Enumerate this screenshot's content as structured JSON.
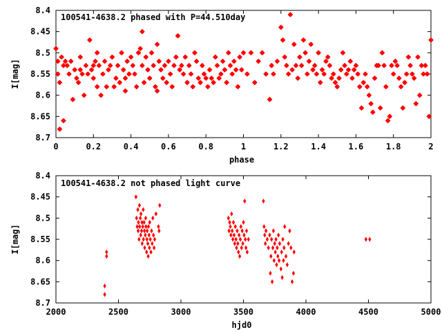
{
  "chart_data": [
    {
      "type": "scatter",
      "title": "100541-4638.2 phased with P=44.510day",
      "xlabel": "phase",
      "ylabel": "I[mag]",
      "xlim": [
        0,
        2
      ],
      "ylim": [
        8.7,
        8.4
      ],
      "y_inverted": true,
      "xticks": [
        "0",
        "0.2",
        "0.4",
        "0.6",
        "0.8",
        "1",
        "1.2",
        "1.4",
        "1.6",
        "1.8",
        "2"
      ],
      "yticks": [
        "8.4",
        "8.45",
        "8.5",
        "8.55",
        "8.6",
        "8.65",
        "8.7"
      ],
      "marker": "star",
      "color": "#ff0000",
      "points": [
        [
          0.0,
          8.49
        ],
        [
          0.01,
          8.52
        ],
        [
          0.01,
          8.55
        ],
        [
          0.02,
          8.57
        ],
        [
          0.02,
          8.68
        ],
        [
          0.03,
          8.51
        ],
        [
          0.04,
          8.53
        ],
        [
          0.04,
          8.66
        ],
        [
          0.05,
          8.52
        ],
        [
          0.06,
          8.53
        ],
        [
          0.07,
          8.55
        ],
        [
          0.08,
          8.52
        ],
        [
          0.09,
          8.61
        ],
        [
          0.1,
          8.54
        ],
        [
          0.11,
          8.56
        ],
        [
          0.12,
          8.57
        ],
        [
          0.13,
          8.51
        ],
        [
          0.13,
          8.54
        ],
        [
          0.14,
          8.55
        ],
        [
          0.15,
          8.6
        ],
        [
          0.16,
          8.53
        ],
        [
          0.17,
          8.55
        ],
        [
          0.18,
          8.47
        ],
        [
          0.19,
          8.54
        ],
        [
          0.2,
          8.53
        ],
        [
          0.2,
          8.56
        ],
        [
          0.21,
          8.52
        ],
        [
          0.22,
          8.5
        ],
        [
          0.22,
          8.58
        ],
        [
          0.23,
          8.53
        ],
        [
          0.24,
          8.6
        ],
        [
          0.25,
          8.55
        ],
        [
          0.26,
          8.52
        ],
        [
          0.27,
          8.58
        ],
        [
          0.28,
          8.54
        ],
        [
          0.29,
          8.53
        ],
        [
          0.3,
          8.51
        ],
        [
          0.31,
          8.58
        ],
        [
          0.32,
          8.56
        ],
        [
          0.33,
          8.53
        ],
        [
          0.34,
          8.57
        ],
        [
          0.35,
          8.5
        ],
        [
          0.36,
          8.54
        ],
        [
          0.37,
          8.56
        ],
        [
          0.37,
          8.59
        ],
        [
          0.38,
          8.52
        ],
        [
          0.39,
          8.55
        ],
        [
          0.4,
          8.51
        ],
        [
          0.41,
          8.53
        ],
        [
          0.42,
          8.55
        ],
        [
          0.43,
          8.58
        ],
        [
          0.44,
          8.5
        ],
        [
          0.45,
          8.49
        ],
        [
          0.46,
          8.45
        ],
        [
          0.46,
          8.53
        ],
        [
          0.47,
          8.57
        ],
        [
          0.48,
          8.51
        ],
        [
          0.49,
          8.54
        ],
        [
          0.5,
          8.56
        ],
        [
          0.51,
          8.5
        ],
        [
          0.52,
          8.53
        ],
        [
          0.53,
          8.58
        ],
        [
          0.54,
          8.48
        ],
        [
          0.54,
          8.59
        ],
        [
          0.55,
          8.52
        ],
        [
          0.56,
          8.54
        ],
        [
          0.57,
          8.56
        ],
        [
          0.58,
          8.53
        ],
        [
          0.59,
          8.57
        ],
        [
          0.6,
          8.52
        ],
        [
          0.61,
          8.55
        ],
        [
          0.62,
          8.58
        ],
        [
          0.63,
          8.53
        ],
        [
          0.64,
          8.51
        ],
        [
          0.65,
          8.46
        ],
        [
          0.66,
          8.54
        ],
        [
          0.67,
          8.53
        ],
        [
          0.68,
          8.55
        ],
        [
          0.69,
          8.51
        ],
        [
          0.7,
          8.57
        ],
        [
          0.71,
          8.53
        ],
        [
          0.72,
          8.55
        ],
        [
          0.73,
          8.58
        ],
        [
          0.74,
          8.5
        ],
        [
          0.75,
          8.52
        ],
        [
          0.76,
          8.56
        ],
        [
          0.77,
          8.57
        ],
        [
          0.78,
          8.53
        ],
        [
          0.79,
          8.55
        ],
        [
          0.8,
          8.56
        ],
        [
          0.81,
          8.58
        ],
        [
          0.82,
          8.54
        ],
        [
          0.83,
          8.56
        ],
        [
          0.84,
          8.57
        ],
        [
          0.85,
          8.51
        ],
        [
          0.86,
          8.53
        ],
        [
          0.87,
          8.56
        ],
        [
          0.88,
          8.55
        ],
        [
          0.89,
          8.52
        ],
        [
          0.9,
          8.54
        ],
        [
          0.91,
          8.57
        ],
        [
          0.92,
          8.5
        ],
        [
          0.93,
          8.53
        ],
        [
          0.94,
          8.55
        ],
        [
          0.95,
          8.52
        ],
        [
          0.96,
          8.54
        ],
        [
          0.97,
          8.58
        ],
        [
          0.98,
          8.51
        ],
        [
          0.99,
          8.54
        ],
        [
          1.0,
          8.5
        ],
        [
          1.02,
          8.55
        ],
        [
          1.04,
          8.5
        ],
        [
          1.06,
          8.57
        ],
        [
          1.08,
          8.52
        ],
        [
          1.1,
          8.5
        ],
        [
          1.12,
          8.55
        ],
        [
          1.14,
          8.61
        ],
        [
          1.15,
          8.53
        ],
        [
          1.16,
          8.55
        ],
        [
          1.18,
          8.52
        ],
        [
          1.2,
          8.44
        ],
        [
          1.21,
          8.47
        ],
        [
          1.22,
          8.51
        ],
        [
          1.23,
          8.53
        ],
        [
          1.24,
          8.55
        ],
        [
          1.25,
          8.41
        ],
        [
          1.26,
          8.54
        ],
        [
          1.27,
          8.48
        ],
        [
          1.28,
          8.53
        ],
        [
          1.29,
          8.56
        ],
        [
          1.3,
          8.51
        ],
        [
          1.31,
          8.53
        ],
        [
          1.32,
          8.47
        ],
        [
          1.33,
          8.5
        ],
        [
          1.34,
          8.55
        ],
        [
          1.35,
          8.52
        ],
        [
          1.36,
          8.48
        ],
        [
          1.37,
          8.54
        ],
        [
          1.38,
          8.53
        ],
        [
          1.39,
          8.55
        ],
        [
          1.4,
          8.5
        ],
        [
          1.41,
          8.57
        ],
        [
          1.42,
          8.54
        ],
        [
          1.43,
          8.55
        ],
        [
          1.44,
          8.52
        ],
        [
          1.45,
          8.51
        ],
        [
          1.46,
          8.53
        ],
        [
          1.47,
          8.56
        ],
        [
          1.48,
          8.55
        ],
        [
          1.49,
          8.57
        ],
        [
          1.5,
          8.58
        ],
        [
          1.51,
          8.56
        ],
        [
          1.52,
          8.54
        ],
        [
          1.53,
          8.5
        ],
        [
          1.54,
          8.53
        ],
        [
          1.55,
          8.55
        ],
        [
          1.56,
          8.54
        ],
        [
          1.57,
          8.52
        ],
        [
          1.58,
          8.56
        ],
        [
          1.59,
          8.54
        ],
        [
          1.6,
          8.53
        ],
        [
          1.61,
          8.55
        ],
        [
          1.62,
          8.58
        ],
        [
          1.63,
          8.63
        ],
        [
          1.64,
          8.57
        ],
        [
          1.65,
          8.55
        ],
        [
          1.66,
          8.58
        ],
        [
          1.67,
          8.6
        ],
        [
          1.68,
          8.62
        ],
        [
          1.69,
          8.64
        ],
        [
          1.7,
          8.56
        ],
        [
          1.71,
          8.53
        ],
        [
          1.72,
          8.53
        ],
        [
          1.73,
          8.63
        ],
        [
          1.74,
          8.5
        ],
        [
          1.75,
          8.53
        ],
        [
          1.76,
          8.58
        ],
        [
          1.77,
          8.66
        ],
        [
          1.78,
          8.65
        ],
        [
          1.79,
          8.53
        ],
        [
          1.8,
          8.55
        ],
        [
          1.81,
          8.52
        ],
        [
          1.82,
          8.53
        ],
        [
          1.83,
          8.56
        ],
        [
          1.84,
          8.58
        ],
        [
          1.85,
          8.63
        ],
        [
          1.86,
          8.57
        ],
        [
          1.87,
          8.55
        ],
        [
          1.88,
          8.51
        ],
        [
          1.89,
          8.53
        ],
        [
          1.9,
          8.55
        ],
        [
          1.91,
          8.56
        ],
        [
          1.92,
          8.62
        ],
        [
          1.93,
          8.51
        ],
        [
          1.94,
          8.6
        ],
        [
          1.95,
          8.53
        ],
        [
          1.96,
          8.55
        ],
        [
          1.97,
          8.53
        ],
        [
          1.98,
          8.55
        ],
        [
          1.99,
          8.65
        ],
        [
          2.0,
          8.47
        ]
      ]
    },
    {
      "type": "scatter",
      "title": "100541-4638.2 not phased light curve",
      "xlabel": "hjd0",
      "ylabel": "I[mag]",
      "xlim": [
        2000,
        5000
      ],
      "ylim": [
        8.7,
        8.4
      ],
      "y_inverted": true,
      "xticks": [
        "2000",
        "2500",
        "3000",
        "3500",
        "4000",
        "4500",
        "5000"
      ],
      "yticks": [
        "8.4",
        "8.45",
        "8.5",
        "8.55",
        "8.6",
        "8.65",
        "8.7"
      ],
      "marker": "diamond",
      "color": "#ff0000",
      "points": [
        [
          2390,
          8.66
        ],
        [
          2390,
          8.68
        ],
        [
          2405,
          8.58
        ],
        [
          2405,
          8.59
        ],
        [
          2640,
          8.45
        ],
        [
          2645,
          8.5
        ],
        [
          2650,
          8.52
        ],
        [
          2655,
          8.48
        ],
        [
          2658,
          8.53
        ],
        [
          2660,
          8.51
        ],
        [
          2665,
          8.55
        ],
        [
          2668,
          8.47
        ],
        [
          2670,
          8.52
        ],
        [
          2675,
          8.5
        ],
        [
          2678,
          8.54
        ],
        [
          2680,
          8.49
        ],
        [
          2685,
          8.53
        ],
        [
          2688,
          8.51
        ],
        [
          2690,
          8.56
        ],
        [
          2695,
          8.52
        ],
        [
          2698,
          8.48
        ],
        [
          2700,
          8.55
        ],
        [
          2705,
          8.51
        ],
        [
          2708,
          8.53
        ],
        [
          2710,
          8.57
        ],
        [
          2715,
          8.54
        ],
        [
          2718,
          8.5
        ],
        [
          2720,
          8.52
        ],
        [
          2725,
          8.58
        ],
        [
          2728,
          8.55
        ],
        [
          2730,
          8.53
        ],
        [
          2735,
          8.56
        ],
        [
          2738,
          8.59
        ],
        [
          2740,
          8.52
        ],
        [
          2745,
          8.54
        ],
        [
          2748,
          8.57
        ],
        [
          2750,
          8.51
        ],
        [
          2755,
          8.55
        ],
        [
          2760,
          8.58
        ],
        [
          2765,
          8.53
        ],
        [
          2770,
          8.56
        ],
        [
          2775,
          8.5
        ],
        [
          2780,
          8.54
        ],
        [
          2785,
          8.57
        ],
        [
          2790,
          8.55
        ],
        [
          2800,
          8.49
        ],
        [
          2820,
          8.52
        ],
        [
          2825,
          8.53
        ],
        [
          2830,
          8.47
        ],
        [
          3380,
          8.5
        ],
        [
          3385,
          8.53
        ],
        [
          3390,
          8.51
        ],
        [
          3395,
          8.52
        ],
        [
          3400,
          8.54
        ],
        [
          3405,
          8.49
        ],
        [
          3410,
          8.53
        ],
        [
          3415,
          8.55
        ],
        [
          3420,
          8.51
        ],
        [
          3425,
          8.54
        ],
        [
          3430,
          8.56
        ],
        [
          3435,
          8.52
        ],
        [
          3440,
          8.55
        ],
        [
          3445,
          8.57
        ],
        [
          3450,
          8.53
        ],
        [
          3455,
          8.56
        ],
        [
          3460,
          8.58
        ],
        [
          3465,
          8.54
        ],
        [
          3470,
          8.59
        ],
        [
          3475,
          8.55
        ],
        [
          3480,
          8.52
        ],
        [
          3485,
          8.57
        ],
        [
          3490,
          8.53
        ],
        [
          3495,
          8.56
        ],
        [
          3500,
          8.51
        ],
        [
          3505,
          8.54
        ],
        [
          3510,
          8.46
        ],
        [
          3515,
          8.55
        ],
        [
          3520,
          8.57
        ],
        [
          3525,
          8.53
        ],
        [
          3530,
          8.58
        ],
        [
          3540,
          8.55
        ],
        [
          3660,
          8.46
        ],
        [
          3665,
          8.52
        ],
        [
          3670,
          8.54
        ],
        [
          3675,
          8.56
        ],
        [
          3680,
          8.53
        ],
        [
          3690,
          8.55
        ],
        [
          3700,
          8.57
        ],
        [
          3710,
          8.54
        ],
        [
          3715,
          8.63
        ],
        [
          3720,
          8.59
        ],
        [
          3725,
          8.55
        ],
        [
          3730,
          8.65
        ],
        [
          3735,
          8.57
        ],
        [
          3740,
          8.53
        ],
        [
          3745,
          8.6
        ],
        [
          3750,
          8.56
        ],
        [
          3755,
          8.58
        ],
        [
          3760,
          8.55
        ],
        [
          3765,
          8.61
        ],
        [
          3770,
          8.57
        ],
        [
          3775,
          8.59
        ],
        [
          3780,
          8.54
        ],
        [
          3785,
          8.6
        ],
        [
          3790,
          8.56
        ],
        [
          3800,
          8.62
        ],
        [
          3805,
          8.58
        ],
        [
          3810,
          8.64
        ],
        [
          3815,
          8.55
        ],
        [
          3820,
          8.6
        ],
        [
          3825,
          8.57
        ],
        [
          3830,
          8.52
        ],
        [
          3840,
          8.59
        ],
        [
          3850,
          8.61
        ],
        [
          3860,
          8.56
        ],
        [
          3870,
          8.53
        ],
        [
          3880,
          8.57
        ],
        [
          3890,
          8.65
        ],
        [
          3900,
          8.63
        ],
        [
          3905,
          8.58
        ],
        [
          4480,
          8.55
        ],
        [
          4510,
          8.55
        ]
      ]
    }
  ]
}
